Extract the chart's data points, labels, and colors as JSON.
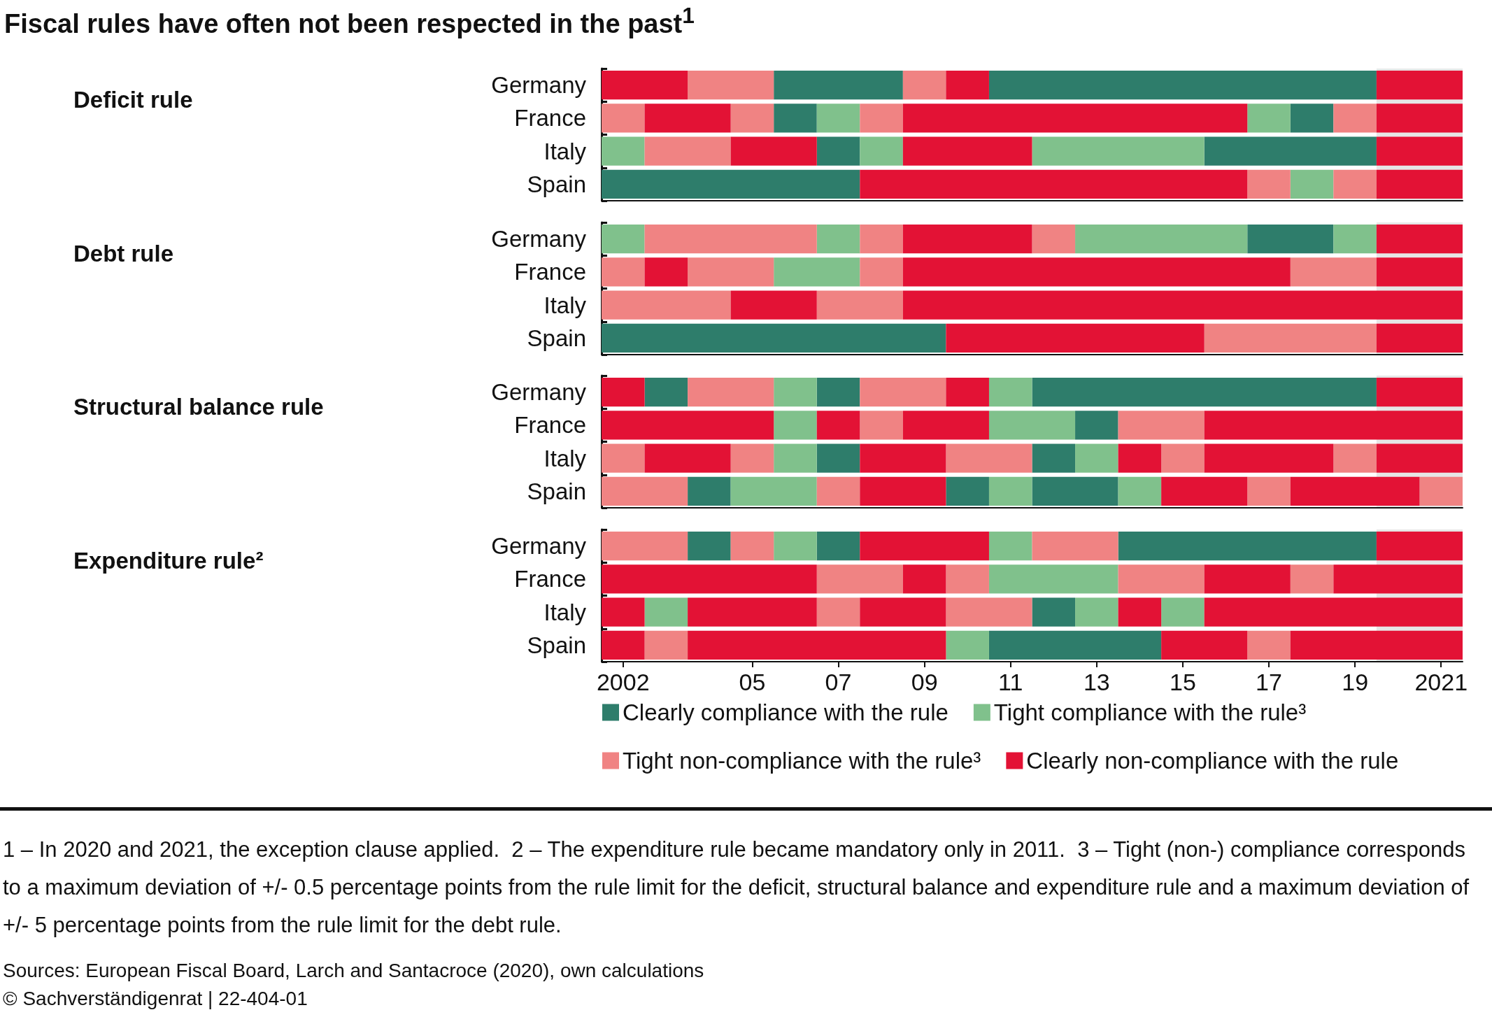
{
  "chart_data": [
    {
      "type": "bar",
      "orientation": "horizontal",
      "title": "Fiscal rules have often not been respected in the past$^{1}$",
      "ylabel": "Deficit rule",
      "tick_labels": "y",
      "xlim": [
        2001.5,
        2021.5
      ],
      "categories": [
        "Germany",
        "France",
        "Italy",
        "Spain"
      ],
      "series": [
        {
          "color": "#2e7d6b",
          "base": [
            2005.5,
            2005.5,
            2006.5,
            2001.5
          ],
          "values": [
            3,
            1,
            1,
            6
          ]
        },
        {
          "color": "#2e7d6b",
          "base": [
            2010.5,
            2017.5,
            2015.5,
            null
          ],
          "values": [
            9,
            1,
            4,
            null
          ]
        },
        {
          "color": "#80c18c",
          "base": [
            null,
            2006.5,
            2001.5,
            2017.5
          ],
          "values": [
            null,
            1,
            1,
            1
          ]
        },
        {
          "color": "#80c18c",
          "base": [
            null,
            2016.5,
            2007.5,
            null
          ],
          "values": [
            null,
            1,
            1,
            null
          ]
        },
        {
          "color": "#80c18c",
          "base": [
            null,
            null,
            2011.5,
            null
          ],
          "values": [
            null,
            null,
            4,
            null
          ]
        },
        {
          "color": "#f08383",
          "base": [
            2003.5,
            2001.5,
            2002.5,
            2016.5
          ],
          "values": [
            2,
            1,
            2,
            1
          ]
        },
        {
          "color": "#f08383",
          "base": [
            2008.5,
            2004.5,
            null,
            2018.5
          ],
          "values": [
            1,
            1,
            null,
            1
          ]
        },
        {
          "color": "#f08383",
          "base": [
            null,
            2007.5,
            null,
            null
          ],
          "values": [
            null,
            1,
            null,
            null
          ]
        },
        {
          "color": "#f08383",
          "base": [
            null,
            2018.5,
            null,
            null
          ],
          "values": [
            null,
            1,
            null,
            null
          ]
        },
        {
          "color": "#e31235",
          "base": [
            2001.5,
            2002.5,
            2004.5,
            2007.5
          ],
          "values": [
            2,
            2,
            2,
            9
          ]
        },
        {
          "color": "#e31235",
          "base": [
            2009.5,
            2008.5,
            2008.5,
            2019.5
          ],
          "values": [
            1,
            8,
            3,
            2
          ]
        },
        {
          "color": "#e31235",
          "base": [
            2019.5,
            2019.5,
            2019.5,
            null
          ],
          "values": [
            2,
            2,
            2,
            null
          ]
        }
      ],
      "bands": [
        {
          "axis": "x",
          "from": 2019.5,
          "to": 2021.5,
          "color": "#e6e6e6"
        }
      ]
    },
    {
      "type": "bar",
      "orientation": "horizontal",
      "ylabel": "Debt rule",
      "tick_labels": "y",
      "xlim": [
        2001.5,
        2021.5
      ],
      "categories": [
        "Germany",
        "France",
        "Italy",
        "Spain"
      ],
      "series": [
        {
          "color": "#2e7d6b",
          "base": [
            2016.5,
            null,
            null,
            2001.5
          ],
          "values": [
            2,
            null,
            null,
            8
          ]
        },
        {
          "color": "#80c18c",
          "base": [
            2001.5,
            2005.5,
            null,
            null
          ],
          "values": [
            1,
            2,
            null,
            null
          ]
        },
        {
          "color": "#80c18c",
          "base": [
            2006.5,
            null,
            null,
            null
          ],
          "values": [
            1,
            null,
            null,
            null
          ]
        },
        {
          "color": "#80c18c",
          "base": [
            2012.5,
            null,
            null,
            null
          ],
          "values": [
            4,
            null,
            null,
            null
          ]
        },
        {
          "color": "#80c18c",
          "base": [
            2018.5,
            null,
            null,
            null
          ],
          "values": [
            1,
            null,
            null,
            null
          ]
        },
        {
          "color": "#f08383",
          "base": [
            2002.5,
            2001.5,
            2001.5,
            2015.5
          ],
          "values": [
            4,
            1,
            3,
            4
          ]
        },
        {
          "color": "#f08383",
          "base": [
            2007.5,
            2003.5,
            2006.5,
            null
          ],
          "values": [
            1,
            2,
            2,
            null
          ]
        },
        {
          "color": "#f08383",
          "base": [
            2011.5,
            2007.5,
            null,
            null
          ],
          "values": [
            1,
            1,
            null,
            null
          ]
        },
        {
          "color": "#f08383",
          "base": [
            null,
            2017.5,
            null,
            null
          ],
          "values": [
            null,
            2,
            null,
            null
          ]
        },
        {
          "color": "#e31235",
          "base": [
            2008.5,
            2002.5,
            2004.5,
            2009.5
          ],
          "values": [
            3,
            1,
            2,
            6
          ]
        },
        {
          "color": "#e31235",
          "base": [
            2019.5,
            2008.5,
            2008.5,
            2019.5
          ],
          "values": [
            2,
            9,
            13,
            2
          ]
        },
        {
          "color": "#e31235",
          "base": [
            null,
            2019.5,
            null,
            null
          ],
          "values": [
            null,
            2,
            null,
            null
          ]
        }
      ],
      "bands": [
        {
          "axis": "x",
          "from": 2019.5,
          "to": 2021.5,
          "color": "#e6e6e6"
        }
      ]
    },
    {
      "type": "bar",
      "orientation": "horizontal",
      "ylabel": "Structural balance rule",
      "tick_labels": "y",
      "xlim": [
        2001.5,
        2021.5
      ],
      "categories": [
        "Germany",
        "France",
        "Italy",
        "Spain"
      ],
      "series": [
        {
          "color": "#2e7d6b",
          "base": [
            2002.5,
            2012.5,
            2006.5,
            2003.5
          ],
          "values": [
            1,
            1,
            1,
            1
          ]
        },
        {
          "color": "#2e7d6b",
          "base": [
            2006.5,
            null,
            2011.5,
            2009.5
          ],
          "values": [
            1,
            null,
            1,
            1
          ]
        },
        {
          "color": "#2e7d6b",
          "base": [
            2011.5,
            null,
            null,
            2011.5
          ],
          "values": [
            8,
            null,
            null,
            2
          ]
        },
        {
          "color": "#80c18c",
          "base": [
            2005.5,
            2005.5,
            2005.5,
            2004.5
          ],
          "values": [
            1,
            1,
            1,
            2
          ]
        },
        {
          "color": "#80c18c",
          "base": [
            2010.5,
            2010.5,
            2012.5,
            2010.5
          ],
          "values": [
            1,
            2,
            1,
            1
          ]
        },
        {
          "color": "#80c18c",
          "base": [
            null,
            null,
            null,
            2013.5
          ],
          "values": [
            null,
            null,
            null,
            1
          ]
        },
        {
          "color": "#f08383",
          "base": [
            2003.5,
            2007.5,
            2001.5,
            2001.5
          ],
          "values": [
            2,
            1,
            1,
            2
          ]
        },
        {
          "color": "#f08383",
          "base": [
            2007.5,
            2013.5,
            2004.5,
            2006.5
          ],
          "values": [
            2,
            2,
            1,
            1
          ]
        },
        {
          "color": "#f08383",
          "base": [
            null,
            null,
            2009.5,
            2016.5
          ],
          "values": [
            null,
            null,
            2,
            1
          ]
        },
        {
          "color": "#f08383",
          "base": [
            null,
            null,
            2014.5,
            2020.5
          ],
          "values": [
            null,
            null,
            1,
            1
          ]
        },
        {
          "color": "#f08383",
          "base": [
            null,
            null,
            2018.5,
            null
          ],
          "values": [
            null,
            null,
            1,
            null
          ]
        },
        {
          "color": "#e31235",
          "base": [
            2001.5,
            2001.5,
            2002.5,
            2007.5
          ],
          "values": [
            1,
            4,
            2,
            2
          ]
        },
        {
          "color": "#e31235",
          "base": [
            2009.5,
            2006.5,
            2007.5,
            2014.5
          ],
          "values": [
            1,
            1,
            2,
            2
          ]
        },
        {
          "color": "#e31235",
          "base": [
            2019.5,
            2008.5,
            2013.5,
            2017.5
          ],
          "values": [
            2,
            2,
            1,
            3
          ]
        },
        {
          "color": "#e31235",
          "base": [
            null,
            2015.5,
            2015.5,
            null
          ],
          "values": [
            null,
            6,
            3,
            null
          ]
        },
        {
          "color": "#e31235",
          "base": [
            null,
            null,
            2019.5,
            null
          ],
          "values": [
            null,
            null,
            2,
            null
          ]
        }
      ],
      "bands": [
        {
          "axis": "x",
          "from": 2019.5,
          "to": 2021.5,
          "color": "#e6e6e6"
        }
      ]
    },
    {
      "type": "bar",
      "orientation": "horizontal",
      "ylabel": "Expenditure rule²",
      "categories": [
        "Germany",
        "France",
        "Italy",
        "Spain"
      ],
      "xlim": [
        2001.5,
        2021.5
      ],
      "xticks": [
        2002,
        {
          "value": 2005,
          "label": "05"
        },
        {
          "value": 2007,
          "label": "07"
        },
        {
          "value": 2009,
          "label": "09"
        },
        {
          "value": 2011,
          "label": "11"
        },
        {
          "value": 2013,
          "label": "13"
        },
        {
          "value": 2015,
          "label": "15"
        },
        {
          "value": 2017,
          "label": "17"
        },
        {
          "value": 2019,
          "label": "19"
        },
        2021
      ],
      "series": [
        {
          "name": "Clearly compliance with the rule",
          "color": "#2e7d6b",
          "base": [
            2003.5,
            null,
            2011.5,
            2010.5
          ],
          "values": [
            1,
            null,
            1,
            4
          ]
        },
        {
          "color": "#2e7d6b",
          "base": [
            2006.5,
            null,
            null,
            null
          ],
          "values": [
            1,
            null,
            null,
            null
          ]
        },
        {
          "color": "#2e7d6b",
          "base": [
            2013.5,
            null,
            null,
            null
          ],
          "values": [
            6,
            null,
            null,
            null
          ]
        },
        {
          "name": "Tight compliance with the rule³",
          "color": "#80c18c",
          "base": [
            2005.5,
            2010.5,
            2002.5,
            2009.5
          ],
          "values": [
            1,
            3,
            1,
            1
          ]
        },
        {
          "color": "#80c18c",
          "base": [
            2010.5,
            null,
            2012.5,
            null
          ],
          "values": [
            1,
            null,
            1,
            null
          ]
        },
        {
          "color": "#80c18c",
          "base": [
            null,
            null,
            2014.5,
            null
          ],
          "values": [
            null,
            null,
            1,
            null
          ]
        },
        {
          "name": "Tight non-compliance with the rule³",
          "color": "#f08383",
          "base": [
            2001.5,
            2006.5,
            2006.5,
            2002.5
          ],
          "values": [
            2,
            2,
            1,
            1
          ]
        },
        {
          "color": "#f08383",
          "base": [
            2004.5,
            2009.5,
            2009.5,
            2016.5
          ],
          "values": [
            1,
            1,
            2,
            1
          ]
        },
        {
          "color": "#f08383",
          "base": [
            2011.5,
            2013.5,
            null,
            null
          ],
          "values": [
            2,
            2,
            null,
            null
          ]
        },
        {
          "color": "#f08383",
          "base": [
            null,
            2017.5,
            null,
            null
          ],
          "values": [
            null,
            1,
            null,
            null
          ]
        },
        {
          "name": "Clearly non-compliance with the rule",
          "color": "#e31235",
          "base": [
            2007.5,
            2001.5,
            2001.5,
            2001.5
          ],
          "values": [
            3,
            5,
            1,
            1
          ]
        },
        {
          "color": "#e31235",
          "base": [
            2019.5,
            2008.5,
            2003.5,
            2003.5
          ],
          "values": [
            2,
            1,
            3,
            6
          ]
        },
        {
          "color": "#e31235",
          "base": [
            null,
            2015.5,
            2007.5,
            2014.5
          ],
          "values": [
            null,
            2,
            2,
            2
          ]
        },
        {
          "color": "#e31235",
          "base": [
            null,
            2018.5,
            2013.5,
            2017.5
          ],
          "values": [
            null,
            3,
            1,
            4
          ]
        },
        {
          "color": "#e31235",
          "base": [
            null,
            null,
            2015.5,
            null
          ],
          "values": [
            null,
            null,
            6,
            null
          ]
        }
      ],
      "bands": [
        {
          "axis": "x",
          "from": 2019.5,
          "to": 2021.5,
          "color": "#e6e6e6"
        }
      ],
      "legend": "bottom",
      "annotations": [
        "1 – In 2020 and 2021, the exception clause applied.",
        "2 – The expenditure rule became mandatory only in 2011.",
        "3 – Tight (non-) compliance corresponds to a maximum deviation of +/- 0.5 percentage points from the rule limit for the deficit, structural balance and expenditure rule and a maximum deviation of +/- 5 percentage points from the rule limit for the debt rule.",
        "Sources: European Fiscal Board, Larch and Santacroce (2020), own calculations",
        "© Sachverständigenrat | 22-404-01"
      ]
    }
  ]
}
